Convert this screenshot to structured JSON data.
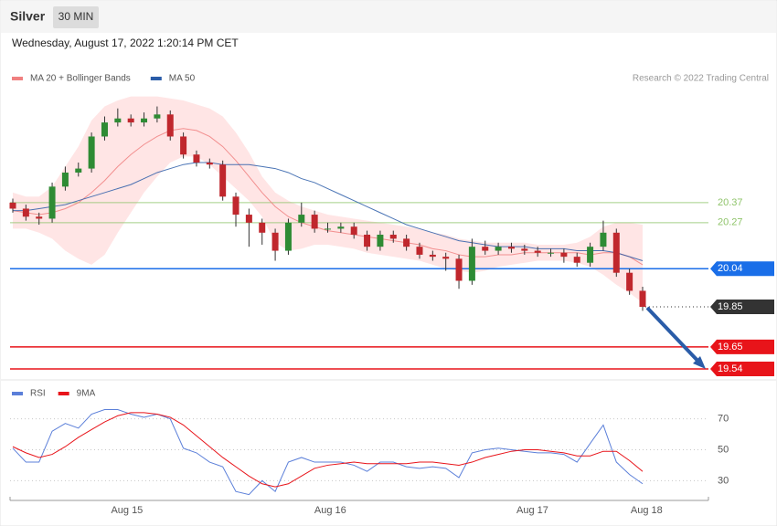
{
  "header": {
    "title": "Silver",
    "interval": "30 MIN",
    "timestamp": "Wednesday, August 17, 2022 1:20:14 PM CET",
    "credit": "Research © 2022 Trading Central"
  },
  "chart_data": [
    {
      "type": "candlestick",
      "up_color": "#2e8b34",
      "down_color": "#c0272d",
      "open": [
        20.37,
        20.34,
        20.3,
        20.29,
        20.45,
        20.52,
        20.54,
        20.7,
        20.77,
        20.79,
        20.77,
        20.79,
        20.81,
        20.7,
        20.61,
        20.57,
        20.56,
        20.4,
        20.31,
        20.27,
        20.22,
        20.13,
        20.27,
        20.31,
        20.24,
        20.24,
        20.25,
        20.21,
        20.15,
        20.21,
        20.19,
        20.15,
        20.11,
        20.1,
        20.09,
        19.98,
        20.15,
        20.13,
        20.15,
        20.14,
        20.13,
        20.12,
        20.12,
        20.1,
        20.07,
        20.15,
        20.22,
        20.02,
        19.93
      ],
      "high": [
        20.39,
        20.36,
        20.32,
        20.47,
        20.55,
        20.57,
        20.72,
        20.8,
        20.84,
        20.81,
        20.82,
        20.85,
        20.83,
        20.72,
        20.63,
        20.59,
        20.58,
        20.42,
        20.34,
        20.29,
        20.24,
        20.29,
        20.37,
        20.33,
        20.27,
        20.27,
        20.27,
        20.23,
        20.23,
        20.23,
        20.21,
        20.17,
        20.13,
        20.12,
        20.11,
        20.19,
        20.18,
        20.17,
        20.17,
        20.16,
        20.15,
        20.14,
        20.14,
        20.12,
        20.17,
        20.28,
        20.24,
        20.04,
        19.95
      ],
      "low": [
        20.32,
        20.28,
        20.26,
        20.27,
        20.43,
        20.5,
        20.52,
        20.68,
        20.75,
        20.75,
        20.75,
        20.77,
        20.68,
        20.59,
        20.55,
        20.54,
        20.38,
        20.25,
        20.15,
        20.16,
        20.08,
        20.11,
        20.25,
        20.22,
        20.22,
        20.22,
        20.19,
        20.13,
        20.13,
        20.17,
        20.13,
        20.09,
        20.08,
        20.03,
        19.94,
        19.96,
        20.11,
        20.11,
        20.12,
        20.11,
        20.1,
        20.1,
        20.07,
        20.05,
        20.05,
        20.13,
        20.0,
        19.91,
        19.83
      ],
      "close": [
        20.34,
        20.3,
        20.29,
        20.45,
        20.52,
        20.54,
        20.7,
        20.77,
        20.79,
        20.77,
        20.79,
        20.81,
        20.7,
        20.61,
        20.57,
        20.56,
        20.4,
        20.31,
        20.27,
        20.22,
        20.13,
        20.27,
        20.31,
        20.24,
        20.24,
        20.25,
        20.21,
        20.15,
        20.21,
        20.19,
        20.15,
        20.11,
        20.1,
        20.09,
        19.98,
        20.15,
        20.13,
        20.15,
        20.14,
        20.13,
        20.12,
        20.12,
        20.1,
        20.07,
        20.15,
        20.22,
        20.02,
        19.93,
        19.85
      ],
      "series": [
        {
          "name": "MA 20 + Bollinger Bands",
          "color": "#f08080",
          "values": [
            20.33,
            20.32,
            20.31,
            20.32,
            20.34,
            20.37,
            20.42,
            20.48,
            20.55,
            20.61,
            20.66,
            20.7,
            20.73,
            20.74,
            20.73,
            20.7,
            20.65,
            20.58,
            20.5,
            20.42,
            20.35,
            20.3,
            20.27,
            20.25,
            20.23,
            20.22,
            20.21,
            20.2,
            20.19,
            20.18,
            20.17,
            20.16,
            20.14,
            20.13,
            20.11,
            20.1,
            20.1,
            20.11,
            20.11,
            20.12,
            20.12,
            20.12,
            20.12,
            20.12,
            20.11,
            20.12,
            20.12,
            20.1,
            20.06
          ],
          "upper": [
            20.42,
            20.4,
            20.4,
            20.45,
            20.55,
            20.65,
            20.78,
            20.85,
            20.88,
            20.9,
            20.9,
            20.9,
            20.89,
            20.88,
            20.86,
            20.84,
            20.8,
            20.72,
            20.62,
            20.5,
            20.42,
            20.38,
            20.35,
            20.33,
            20.31,
            20.3,
            20.29,
            20.28,
            20.27,
            20.26,
            20.25,
            20.24,
            20.22,
            20.21,
            20.19,
            20.18,
            20.17,
            20.17,
            20.17,
            20.17,
            20.16,
            20.16,
            20.16,
            20.17,
            20.2,
            20.25,
            20.27,
            20.27,
            20.26
          ],
          "lower": [
            20.24,
            20.24,
            20.22,
            20.19,
            20.13,
            20.09,
            20.06,
            20.11,
            20.22,
            20.32,
            20.42,
            20.5,
            20.57,
            20.6,
            20.6,
            20.56,
            20.5,
            20.44,
            20.38,
            20.3,
            20.17,
            20.13,
            20.14,
            20.16,
            20.16,
            20.15,
            20.14,
            20.12,
            20.11,
            20.1,
            20.09,
            20.08,
            20.06,
            20.04,
            20.03,
            20.02,
            20.03,
            20.05,
            20.06,
            20.07,
            20.08,
            20.08,
            20.08,
            20.07,
            20.05,
            20.01,
            19.96,
            19.92,
            19.87
          ],
          "band_color": "#ffdede"
        },
        {
          "name": "MA 50",
          "color": "#2a5ca8",
          "values": [
            20.33,
            20.33,
            20.34,
            20.35,
            20.36,
            20.38,
            20.4,
            20.42,
            20.44,
            20.46,
            20.49,
            20.52,
            20.54,
            20.56,
            20.57,
            20.57,
            20.56,
            20.56,
            20.56,
            20.55,
            20.54,
            20.52,
            20.49,
            20.47,
            20.44,
            20.41,
            20.38,
            20.35,
            20.32,
            20.29,
            20.26,
            20.24,
            20.22,
            20.2,
            20.18,
            20.17,
            20.16,
            20.15,
            20.15,
            20.15,
            20.14,
            20.14,
            20.14,
            20.13,
            20.13,
            20.13,
            20.12,
            20.1,
            20.08
          ]
        }
      ],
      "levels": [
        {
          "value": 20.37,
          "color": "#8fc46a",
          "line": "solid",
          "box": false
        },
        {
          "value": 20.27,
          "color": "#8fc46a",
          "line": "solid",
          "box": false
        },
        {
          "value": 20.04,
          "color": "#1a6ee8",
          "line": "solid",
          "box": true
        },
        {
          "value": 19.85,
          "color": "#333333",
          "line": "dotted",
          "box": true
        },
        {
          "value": 19.65,
          "color": "#e8141a",
          "line": "solid",
          "box": true
        },
        {
          "value": 19.54,
          "color": "#e8141a",
          "line": "solid",
          "box": true
        }
      ],
      "ylim": [
        19.49,
        20.93
      ]
    },
    {
      "type": "line",
      "series": [
        {
          "name": "RSI",
          "color": "#5b7fd9",
          "values": [
            51,
            42,
            42,
            62,
            67,
            64,
            73,
            76,
            76,
            73,
            71,
            73,
            70,
            51,
            48,
            42,
            39,
            23,
            21,
            30,
            23,
            42,
            45,
            42,
            42,
            42,
            40,
            36,
            42,
            42,
            39,
            38,
            39,
            38,
            32,
            48,
            50,
            51,
            50,
            49,
            48,
            48,
            47,
            42,
            54,
            66,
            42,
            34,
            28
          ]
        },
        {
          "name": "9MA",
          "color": "#e8141a",
          "values": [
            52,
            48,
            45,
            47,
            52,
            58,
            63,
            68,
            72,
            74,
            74,
            73,
            71,
            66,
            59,
            52,
            45,
            39,
            33,
            28,
            26,
            28,
            33,
            38,
            40,
            41,
            42,
            41,
            41,
            41,
            41,
            42,
            42,
            41,
            40,
            42,
            45,
            47,
            49,
            50,
            50,
            49,
            48,
            46,
            46,
            49,
            49,
            43,
            36
          ]
        }
      ],
      "ylim": [
        19,
        81
      ],
      "yticks": [
        30,
        50,
        70
      ],
      "xticks": [
        {
          "value": 8.7,
          "label": "Aug 15"
        },
        {
          "value": 24.2,
          "label": "Aug 16"
        },
        {
          "value": 39.6,
          "label": "Aug 17"
        },
        {
          "value": 48.3,
          "label": "Aug 18"
        }
      ]
    }
  ]
}
